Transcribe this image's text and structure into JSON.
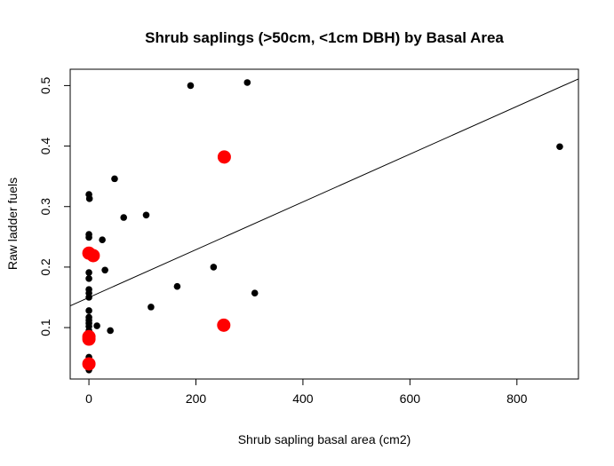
{
  "chart_data": {
    "type": "scatter",
    "title": "Shrub saplings (>50cm, <1cm DBH) by Basal Area",
    "xlabel": "Shrub sapling basal area (cm2)",
    "ylabel": "Raw ladder fuels",
    "xlim": [
      -35,
      915
    ],
    "ylim": [
      0.015,
      0.527
    ],
    "x_ticks": [
      0,
      200,
      400,
      600,
      800
    ],
    "x_tick_labels": [
      "0",
      "200",
      "400",
      "600",
      "800"
    ],
    "y_ticks": [
      0.1,
      0.2,
      0.3,
      0.4,
      0.5
    ],
    "y_tick_labels": [
      "0.1",
      "0.2",
      "0.3",
      "0.4",
      "0.5"
    ],
    "grid": false,
    "legend": "none",
    "series": [
      {
        "color": "#000000",
        "marker": "small-dot",
        "points": [
          [
            0,
            0.32
          ],
          [
            1,
            0.313
          ],
          [
            0,
            0.254
          ],
          [
            0,
            0.249
          ],
          [
            0,
            0.191
          ],
          [
            0,
            0.181
          ],
          [
            0,
            0.163
          ],
          [
            0,
            0.157
          ],
          [
            0,
            0.15
          ],
          [
            0,
            0.128
          ],
          [
            0,
            0.117
          ],
          [
            0,
            0.112
          ],
          [
            0,
            0.107
          ],
          [
            0,
            0.102
          ],
          [
            0,
            0.095
          ],
          [
            0,
            0.09
          ],
          [
            0,
            0.087
          ],
          [
            0,
            0.078
          ],
          [
            0,
            0.051
          ],
          [
            0,
            0.046
          ],
          [
            0,
            0.033
          ],
          [
            0,
            0.03
          ],
          [
            15,
            0.103
          ],
          [
            25,
            0.245
          ],
          [
            30,
            0.195
          ],
          [
            40,
            0.095
          ],
          [
            48,
            0.346
          ],
          [
            65,
            0.282
          ],
          [
            107,
            0.286
          ],
          [
            116,
            0.134
          ],
          [
            165,
            0.168
          ],
          [
            190,
            0.5
          ],
          [
            233,
            0.2
          ],
          [
            296,
            0.505
          ],
          [
            310,
            0.157
          ],
          [
            880,
            0.399
          ]
        ]
      },
      {
        "color": "#ff0000",
        "marker": "large-dot",
        "points": [
          [
            0,
            0.223
          ],
          [
            8,
            0.219
          ],
          [
            0,
            0.085
          ],
          [
            0,
            0.081
          ],
          [
            0,
            0.04
          ],
          [
            253,
            0.382
          ],
          [
            252,
            0.104
          ]
        ]
      }
    ],
    "fit_line": {
      "color": "#000000",
      "points": [
        [
          -35,
          0.136
        ],
        [
          915,
          0.511
        ]
      ]
    }
  }
}
